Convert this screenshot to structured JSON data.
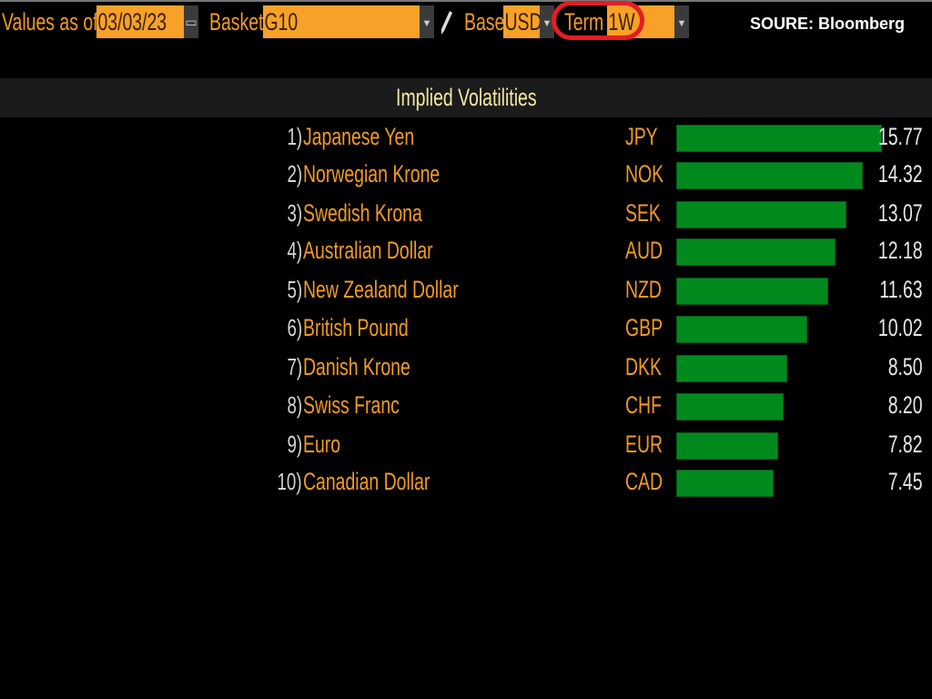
{
  "toolbar": {
    "values_as_of_label": "Values as of",
    "date_value": "03/03/23",
    "basket_label": "Basket",
    "basket_value": "G10",
    "base_label": "Base",
    "base_value": "USD",
    "term_label": "Term",
    "term_value": "1W"
  },
  "source": "SOURE: Bloomberg",
  "panel_title": "Implied Volatilities",
  "colors": {
    "accent": "#f7a128",
    "bar": "#008a1e",
    "highlight": "#e51c24"
  },
  "chart_data": {
    "type": "bar",
    "title": "Implied Volatilities",
    "categories": [
      "Japanese Yen",
      "Norwegian Krone",
      "Swedish Krona",
      "Australian Dollar",
      "New Zealand Dollar",
      "British Pound",
      "Danish Krone",
      "Swiss Franc",
      "Euro",
      "Canadian Dollar"
    ],
    "codes": [
      "JPY",
      "NOK",
      "SEK",
      "AUD",
      "NZD",
      "GBP",
      "DKK",
      "CHF",
      "EUR",
      "CAD"
    ],
    "ranks": [
      "1)",
      "2)",
      "3)",
      "4)",
      "5)",
      "6)",
      "7)",
      "8)",
      "9)",
      "10)"
    ],
    "values": [
      15.77,
      14.32,
      13.07,
      12.18,
      11.63,
      10.02,
      8.5,
      8.2,
      7.82,
      7.45
    ],
    "value_labels": [
      "15.77",
      "14.32",
      "13.07",
      "12.18",
      "11.63",
      "10.02",
      "8.50",
      "8.20",
      "7.82",
      "7.45"
    ],
    "xlim": [
      0,
      15.77
    ]
  }
}
